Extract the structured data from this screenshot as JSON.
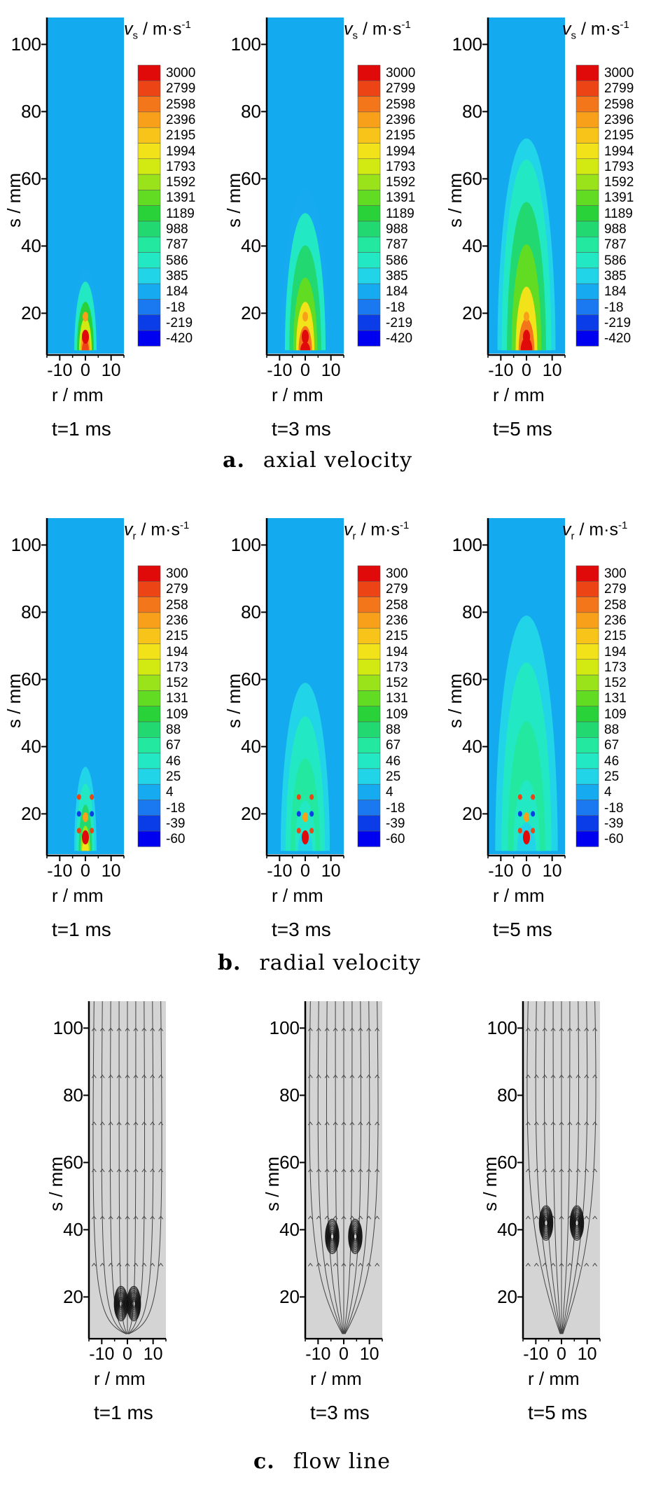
{
  "figure": {
    "y_axis_label": "s / mm",
    "x_axis_label": "r / mm",
    "y_ticks": [
      "100",
      "80",
      "60",
      "40",
      "20"
    ],
    "x_ticks": [
      "-10",
      "0",
      "10"
    ],
    "times": [
      "t=1 ms",
      "t=3 ms",
      "t=5 ms"
    ],
    "colors": {
      "background_field": "#14aaf0",
      "flow_background": "#d4d4d4",
      "scale": [
        "#0000f0",
        "#0a3ce8",
        "#1a78f0",
        "#16aaf0",
        "#22d4e8",
        "#22e8c4",
        "#22e8a0",
        "#22d870",
        "#2ad23a",
        "#62dc22",
        "#9ae21a",
        "#d2ea12",
        "#f2e21a",
        "#f8c41a",
        "#f8a01a",
        "#f4761a",
        "#ec4414",
        "#e00a0a"
      ]
    },
    "sections": [
      {
        "id": "axial",
        "caption_letter": "a.",
        "caption_text": "axial velocity",
        "cb_symbol": "v",
        "cb_sub": "s",
        "cb_unit": " / m·s",
        "cb_exp": "-1",
        "cb_levels": [
          "3000",
          "2799",
          "2598",
          "2396",
          "2195",
          "1994",
          "1793",
          "1592",
          "1391",
          "1189",
          "988",
          "787",
          "586",
          "385",
          "184",
          "-18",
          "-219",
          "-420"
        ]
      },
      {
        "id": "radial",
        "caption_letter": "b.",
        "caption_text": "radial velocity",
        "cb_symbol": "v",
        "cb_sub": "r",
        "cb_unit": " / m·s",
        "cb_exp": "-1",
        "cb_levels": [
          "300",
          "279",
          "258",
          "236",
          "215",
          "194",
          "173",
          "152",
          "131",
          "109",
          "88",
          "67",
          "46",
          "25",
          "4",
          "-18",
          "-39",
          "-60"
        ]
      },
      {
        "id": "flow",
        "caption_letter": "c.",
        "caption_text": "flow line"
      }
    ]
  }
}
